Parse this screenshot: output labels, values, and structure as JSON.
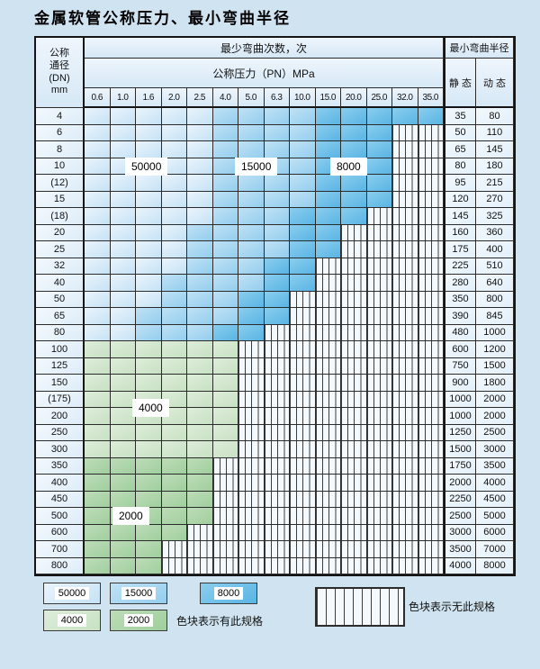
{
  "title": "金属软管公称压力、最小弯曲半径",
  "table": {
    "dn_header_lines": [
      "公称",
      "通径",
      "(DN)",
      "mm"
    ],
    "cycles_header": "最少弯曲次数，次",
    "pressure_header": "公称压力（PN）MPa",
    "radius_header": "最小弯曲半径",
    "static_header": "静 态",
    "dynamic_header": "动 态",
    "pressure_columns": [
      "0.6",
      "1.0",
      "1.6",
      "2.0",
      "2.5",
      "4.0",
      "5.0",
      "6.3",
      "10.0",
      "15.0",
      "20.0",
      "25.0",
      "32.0",
      "35.0"
    ],
    "zone_colors": {
      "b50": "#d9ecf9",
      "b15": "#a3d6f1",
      "b8": "#6fc0e9",
      "g4": "#d2e7ce",
      "g2": "#aed5ab",
      "none_striped": "#f4f9fd"
    },
    "rows": [
      {
        "dn": "4",
        "static": "35",
        "dynamic": "80",
        "zones": [
          [
            5,
            "b50"
          ],
          [
            9,
            "b15"
          ],
          [
            14,
            "b8"
          ]
        ]
      },
      {
        "dn": "6",
        "static": "50",
        "dynamic": "110",
        "zones": [
          [
            5,
            "b50"
          ],
          [
            9,
            "b15"
          ],
          [
            12,
            "b8"
          ]
        ]
      },
      {
        "dn": "8",
        "static": "65",
        "dynamic": "145",
        "zones": [
          [
            5,
            "b50"
          ],
          [
            9,
            "b15"
          ],
          [
            12,
            "b8"
          ]
        ]
      },
      {
        "dn": "10",
        "static": "80",
        "dynamic": "180",
        "zones": [
          [
            5,
            "b50"
          ],
          [
            9,
            "b15"
          ],
          [
            12,
            "b8"
          ]
        ]
      },
      {
        "dn": "(12)",
        "static": "95",
        "dynamic": "215",
        "zones": [
          [
            5,
            "b50"
          ],
          [
            9,
            "b15"
          ],
          [
            12,
            "b8"
          ]
        ]
      },
      {
        "dn": "15",
        "static": "120",
        "dynamic": "270",
        "zones": [
          [
            5,
            "b50"
          ],
          [
            9,
            "b15"
          ],
          [
            12,
            "b8"
          ]
        ]
      },
      {
        "dn": "(18)",
        "static": "145",
        "dynamic": "325",
        "zones": [
          [
            5,
            "b50"
          ],
          [
            8,
            "b15"
          ],
          [
            11,
            "b8"
          ]
        ]
      },
      {
        "dn": "20",
        "static": "160",
        "dynamic": "360",
        "zones": [
          [
            4,
            "b50"
          ],
          [
            8,
            "b15"
          ],
          [
            10,
            "b8"
          ]
        ]
      },
      {
        "dn": "25",
        "static": "175",
        "dynamic": "400",
        "zones": [
          [
            4,
            "b50"
          ],
          [
            8,
            "b15"
          ],
          [
            10,
            "b8"
          ]
        ]
      },
      {
        "dn": "32",
        "static": "225",
        "dynamic": "510",
        "zones": [
          [
            4,
            "b50"
          ],
          [
            7,
            "b15"
          ],
          [
            9,
            "b8"
          ]
        ]
      },
      {
        "dn": "40",
        "static": "280",
        "dynamic": "640",
        "zones": [
          [
            3,
            "b50"
          ],
          [
            7,
            "b15"
          ],
          [
            9,
            "b8"
          ]
        ]
      },
      {
        "dn": "50",
        "static": "350",
        "dynamic": "800",
        "zones": [
          [
            3,
            "b50"
          ],
          [
            6,
            "b15"
          ],
          [
            8,
            "b8"
          ]
        ]
      },
      {
        "dn": "65",
        "static": "390",
        "dynamic": "845",
        "zones": [
          [
            2,
            "b50"
          ],
          [
            6,
            "b15"
          ],
          [
            8,
            "b8"
          ]
        ]
      },
      {
        "dn": "80",
        "static": "480",
        "dynamic": "1000",
        "zones": [
          [
            2,
            "b50"
          ],
          [
            5,
            "b15"
          ],
          [
            7,
            "b8"
          ]
        ]
      },
      {
        "dn": "100",
        "static": "600",
        "dynamic": "1200",
        "zones": [
          [
            6,
            "g4"
          ]
        ]
      },
      {
        "dn": "125",
        "static": "750",
        "dynamic": "1500",
        "zones": [
          [
            6,
            "g4"
          ]
        ]
      },
      {
        "dn": "150",
        "static": "900",
        "dynamic": "1800",
        "zones": [
          [
            6,
            "g4"
          ]
        ]
      },
      {
        "dn": "(175)",
        "static": "1000",
        "dynamic": "2000",
        "zones": [
          [
            6,
            "g4"
          ]
        ]
      },
      {
        "dn": "200",
        "static": "1000",
        "dynamic": "2000",
        "zones": [
          [
            6,
            "g4"
          ]
        ]
      },
      {
        "dn": "250",
        "static": "1250",
        "dynamic": "2500",
        "zones": [
          [
            6,
            "g4"
          ]
        ]
      },
      {
        "dn": "300",
        "static": "1500",
        "dynamic": "3000",
        "zones": [
          [
            6,
            "g4"
          ]
        ]
      },
      {
        "dn": "350",
        "static": "1750",
        "dynamic": "3500",
        "zones": [
          [
            5,
            "g2"
          ]
        ]
      },
      {
        "dn": "400",
        "static": "2000",
        "dynamic": "4000",
        "zones": [
          [
            5,
            "g2"
          ]
        ]
      },
      {
        "dn": "450",
        "static": "2250",
        "dynamic": "4500",
        "zones": [
          [
            5,
            "g2"
          ]
        ]
      },
      {
        "dn": "500",
        "static": "2500",
        "dynamic": "5000",
        "zones": [
          [
            5,
            "g2"
          ]
        ]
      },
      {
        "dn": "600",
        "static": "3000",
        "dynamic": "6000",
        "zones": [
          [
            4,
            "g2"
          ]
        ]
      },
      {
        "dn": "700",
        "static": "3500",
        "dynamic": "7000",
        "zones": [
          [
            3,
            "g2"
          ]
        ]
      },
      {
        "dn": "800",
        "static": "4000",
        "dynamic": "8000",
        "zones": [
          [
            3,
            "g2"
          ]
        ]
      }
    ]
  },
  "cycle_labels": {
    "l50000": "50000",
    "l15000": "15000",
    "l8000": "8000",
    "l4000": "4000",
    "l2000": "2000"
  },
  "legend": {
    "items": [
      {
        "label": "50000",
        "zone": "b50"
      },
      {
        "label": "15000",
        "zone": "b15"
      },
      {
        "label": "8000",
        "zone": "b8"
      },
      {
        "label": "4000",
        "zone": "g4"
      },
      {
        "label": "2000",
        "zone": "g2"
      }
    ],
    "note_available": "色块表示有此规格",
    "note_unavailable": "色块表示无此规格"
  }
}
